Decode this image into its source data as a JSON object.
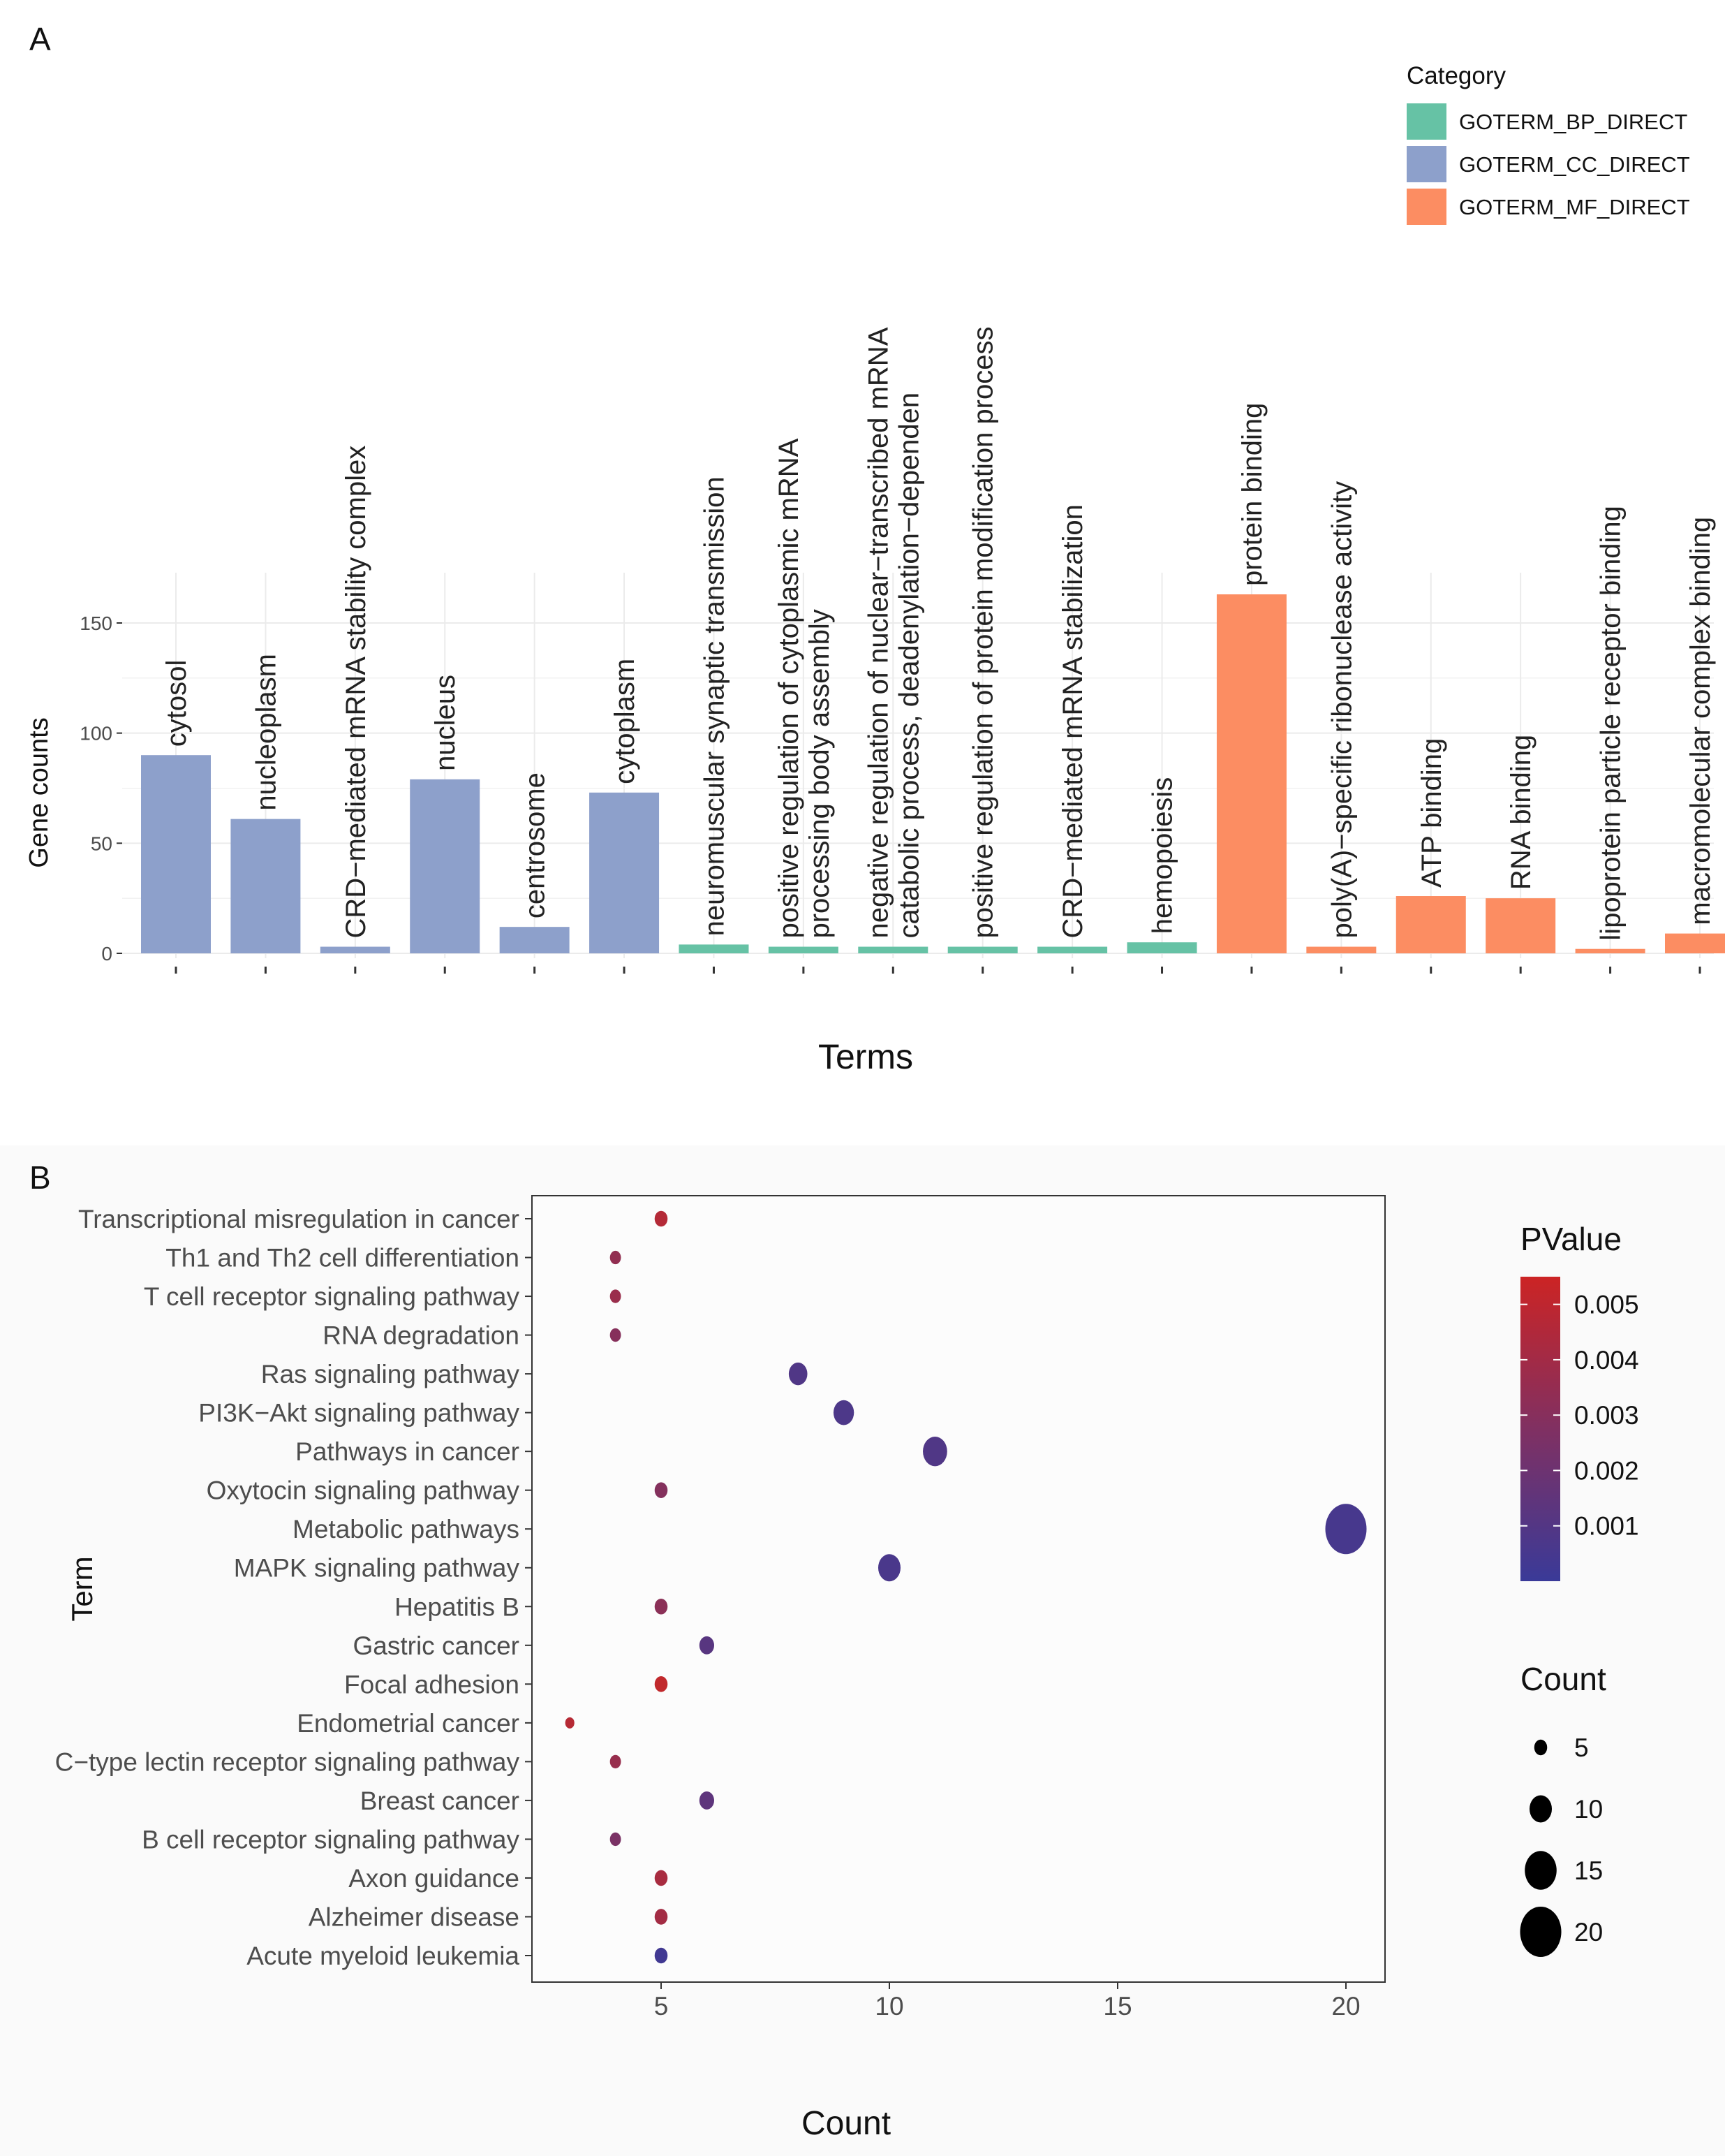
{
  "panel_labels": {
    "a": "A",
    "b": "B"
  },
  "colors": {
    "bp": "#66c2a5",
    "cc": "#8da0cb",
    "mf": "#fc8d62",
    "grid": "#ebebeb",
    "axis_text": "#4d4d4d",
    "pvalue_high": "#c62828",
    "pvalue_low": "#3a3a98"
  },
  "chart_data": [
    {
      "type": "bar",
      "panel": "A",
      "title": "",
      "xlabel": "Terms",
      "ylabel": "Gene counts",
      "ylim": [
        0,
        170
      ],
      "yticks": [
        0,
        50,
        100,
        150
      ],
      "grid": true,
      "legend": {
        "title": "Category",
        "position": "top-right",
        "entries": [
          {
            "name": "GOTERM_BP_DIRECT",
            "key": "bp"
          },
          {
            "name": "GOTERM_CC_DIRECT",
            "key": "cc"
          },
          {
            "name": "GOTERM_MF_DIRECT",
            "key": "mf"
          }
        ]
      },
      "bars": [
        {
          "label": [
            "cytosol"
          ],
          "value": 90,
          "category": "cc"
        },
        {
          "label": [
            "nucleoplasm"
          ],
          "value": 61,
          "category": "cc"
        },
        {
          "label": [
            "CRD−mediated mRNA stability complex"
          ],
          "value": 3,
          "category": "cc"
        },
        {
          "label": [
            "nucleus"
          ],
          "value": 79,
          "category": "cc"
        },
        {
          "label": [
            "centrosome"
          ],
          "value": 12,
          "category": "cc"
        },
        {
          "label": [
            "cytoplasm"
          ],
          "value": 73,
          "category": "cc"
        },
        {
          "label": [
            "neuromuscular synaptic transmission"
          ],
          "value": 4,
          "category": "bp"
        },
        {
          "label": [
            "positive regulation of cytoplasmic mRNA",
            "processing body assembly"
          ],
          "value": 3,
          "category": "bp"
        },
        {
          "label": [
            "negative regulation of nuclear−transcribed mRNA",
            "catabolic process, deadenylation−dependen"
          ],
          "value": 3,
          "category": "bp"
        },
        {
          "label": [
            "positive regulation of protein modification process"
          ],
          "value": 3,
          "category": "bp"
        },
        {
          "label": [
            "CRD−mediated mRNA stabilization"
          ],
          "value": 3,
          "category": "bp"
        },
        {
          "label": [
            "hemopoiesis"
          ],
          "value": 5,
          "category": "bp"
        },
        {
          "label": [
            "protein binding"
          ],
          "value": 163,
          "category": "mf"
        },
        {
          "label": [
            "poly(A)−specific ribonuclease activity"
          ],
          "value": 3,
          "category": "mf"
        },
        {
          "label": [
            "ATP binding"
          ],
          "value": 26,
          "category": "mf"
        },
        {
          "label": [
            "RNA binding"
          ],
          "value": 25,
          "category": "mf"
        },
        {
          "label": [
            "lipoprotein particle receptor binding"
          ],
          "value": 2,
          "category": "mf"
        },
        {
          "label": [
            "macromolecular complex binding"
          ],
          "value": 9,
          "category": "mf"
        }
      ]
    },
    {
      "type": "scatter",
      "panel": "B",
      "title": "",
      "xlabel": "Count",
      "ylabel": "Term",
      "xlim": [
        2.8,
        20.8
      ],
      "xticks": [
        5,
        10,
        15,
        20
      ],
      "grid": false,
      "color_legend": {
        "title": "PValue",
        "range": [
          0,
          0.0055
        ],
        "ticks": [
          0.005,
          0.004,
          0.003,
          0.002,
          0.001
        ],
        "tick_labels": [
          "0.005",
          "0.004",
          "0.003",
          "0.002",
          "0.001"
        ]
      },
      "size_legend": {
        "title": "Count",
        "values": [
          5,
          10,
          15,
          20
        ],
        "labels": [
          "5",
          "10",
          "15",
          "20"
        ]
      },
      "points": [
        {
          "term": "Transcriptional misregulation in cancer",
          "count": 5,
          "pvalue": 0.0047
        },
        {
          "term": "Th1 and Th2 cell differentiation",
          "count": 4,
          "pvalue": 0.0033
        },
        {
          "term": "T cell receptor signaling pathway",
          "count": 4,
          "pvalue": 0.0036
        },
        {
          "term": "RNA degradation",
          "count": 4,
          "pvalue": 0.0028
        },
        {
          "term": "Ras signaling pathway",
          "count": 8,
          "pvalue": 0.0007
        },
        {
          "term": "PI3K−Akt signaling pathway",
          "count": 9,
          "pvalue": 0.0006
        },
        {
          "term": "Pathways in cancer",
          "count": 11,
          "pvalue": 0.0007
        },
        {
          "term": "Oxytocin signaling pathway",
          "count": 5,
          "pvalue": 0.0027
        },
        {
          "term": "Metabolic pathways",
          "count": 20,
          "pvalue": 0.0004
        },
        {
          "term": "MAPK signaling pathway",
          "count": 10,
          "pvalue": 0.0005
        },
        {
          "term": "Hepatitis B",
          "count": 5,
          "pvalue": 0.003
        },
        {
          "term": "Gastric cancer",
          "count": 6,
          "pvalue": 0.001
        },
        {
          "term": "Focal adhesion",
          "count": 5,
          "pvalue": 0.0053
        },
        {
          "term": "Endometrial cancer",
          "count": 3,
          "pvalue": 0.0048
        },
        {
          "term": "C−type lectin receptor signaling pathway",
          "count": 4,
          "pvalue": 0.0035
        },
        {
          "term": "Breast cancer",
          "count": 6,
          "pvalue": 0.0012
        },
        {
          "term": "B cell receptor signaling pathway",
          "count": 4,
          "pvalue": 0.0023
        },
        {
          "term": "Axon guidance",
          "count": 5,
          "pvalue": 0.0042
        },
        {
          "term": "Alzheimer disease",
          "count": 5,
          "pvalue": 0.004
        },
        {
          "term": "Acute myeloid leukemia",
          "count": 5,
          "pvalue": 0.0002
        }
      ]
    }
  ]
}
